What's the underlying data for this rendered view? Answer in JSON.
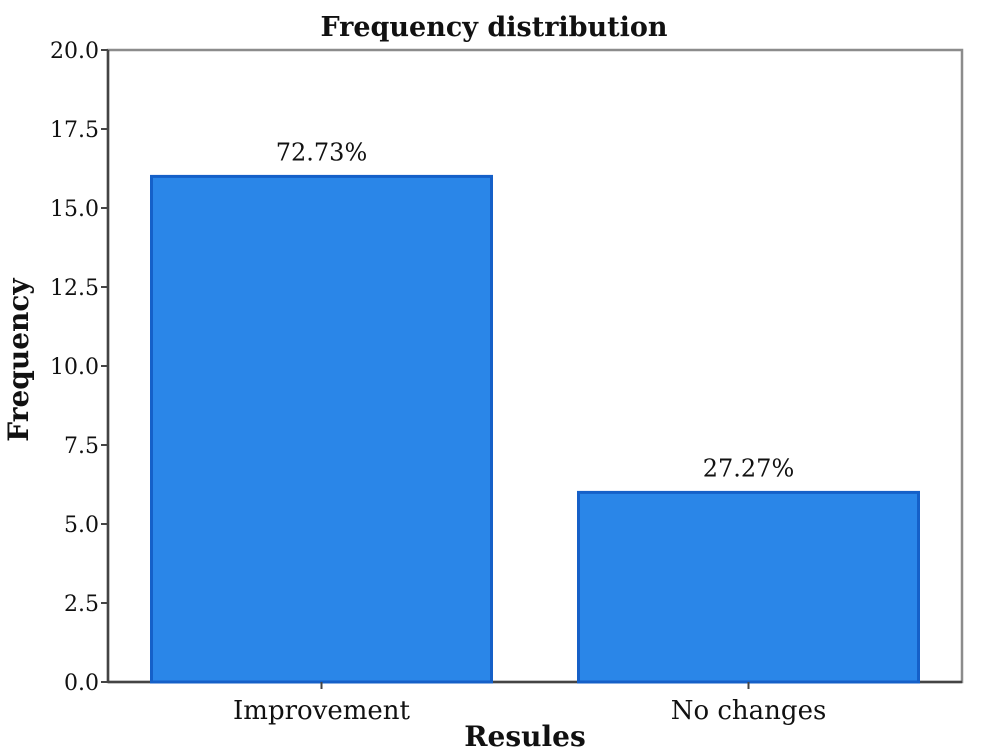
{
  "chart_data": {
    "type": "bar",
    "title": "Frequency distribution",
    "xlabel": "Resules",
    "ylabel": "Frequency",
    "categories": [
      "Improvement",
      "No changes"
    ],
    "values": [
      16,
      6
    ],
    "data_labels": [
      "72.73%",
      "27.27%"
    ],
    "ylim": [
      0,
      20
    ],
    "yticks": [
      "0.0",
      "2.5",
      "5.0",
      "7.5",
      "10.0",
      "12.5",
      "15.0",
      "17.5",
      "20.0"
    ],
    "grid": false,
    "bar_color": "#2a86e8",
    "bar_edge_color": "#1560c8"
  }
}
